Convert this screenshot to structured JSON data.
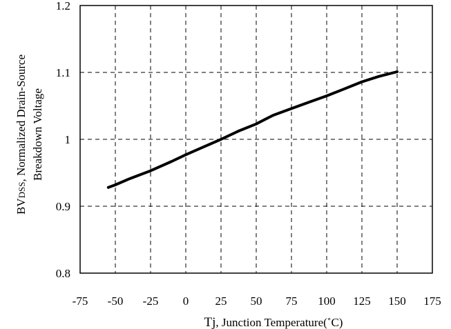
{
  "chart_data": {
    "type": "line",
    "title": "",
    "xlabel_parts": {
      "symbol": "Tj",
      "text": ", Junction Temperature(˚C)"
    },
    "ylabel_line1_parts": {
      "prefix": "BV",
      "sub": "DSS",
      "rest": ", Normalized Drain-Source"
    },
    "ylabel_line2": "Breakdown Voltage",
    "xlim": [
      -75,
      175
    ],
    "ylim": [
      0.8,
      1.2
    ],
    "x_ticks": [
      -75,
      -50,
      -25,
      0,
      25,
      50,
      75,
      100,
      125,
      150,
      175
    ],
    "x_tick_labels": [
      "-75",
      "-50",
      "-25",
      "0",
      "25",
      "50",
      "75",
      "100",
      "125",
      "150",
      "175"
    ],
    "y_ticks": [
      0.8,
      0.9,
      1.0,
      1.1,
      1.2
    ],
    "y_tick_labels": [
      "0.8",
      "0.9",
      "1",
      "1.1",
      "1.2"
    ],
    "grid": {
      "style": "dashed",
      "on": true
    },
    "line_color": "#000000",
    "series": [
      {
        "x": [
          -55,
          -50,
          -40,
          -25,
          -10,
          0,
          12,
          25,
          37,
          50,
          62,
          75,
          88,
          100,
          112,
          125,
          137,
          150
        ],
        "y": [
          0.928,
          0.932,
          0.941,
          0.953,
          0.967,
          0.977,
          0.988,
          1.0,
          1.012,
          1.023,
          1.036,
          1.046,
          1.056,
          1.065,
          1.075,
          1.086,
          1.094,
          1.101
        ]
      }
    ]
  }
}
